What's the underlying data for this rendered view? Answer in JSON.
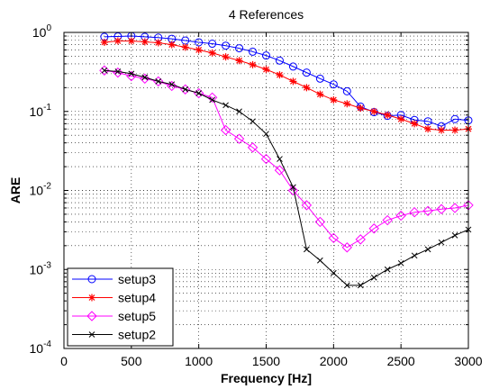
{
  "chart_data": {
    "type": "line",
    "title": "4 References",
    "xlabel": "Frequency [Hz]",
    "ylabel": "ARE",
    "xlim": [
      0,
      3000
    ],
    "ylim": [
      0.0001,
      1
    ],
    "yscale": "log",
    "grid": true,
    "legend_position": "bottom-left",
    "x_ticks": [
      "0",
      "500",
      "1000",
      "1500",
      "2000",
      "2500",
      "3000"
    ],
    "y_ticks": [
      {
        "base": "10",
        "exp": "0"
      },
      {
        "base": "10",
        "exp": "-1"
      },
      {
        "base": "10",
        "exp": "-2"
      },
      {
        "base": "10",
        "exp": "-3"
      },
      {
        "base": "10",
        "exp": "-4"
      }
    ],
    "x": [
      300,
      400,
      500,
      600,
      700,
      800,
      900,
      1000,
      1100,
      1200,
      1300,
      1400,
      1500,
      1600,
      1700,
      1800,
      1900,
      2000,
      2100,
      2200,
      2300,
      2400,
      2500,
      2600,
      2700,
      2800,
      2900,
      3000
    ],
    "series": [
      {
        "name": "setup3",
        "color": "#0000ff",
        "marker": "circle",
        "values": [
          0.88,
          0.89,
          0.9,
          0.88,
          0.86,
          0.83,
          0.79,
          0.75,
          0.72,
          0.68,
          0.63,
          0.57,
          0.51,
          0.44,
          0.37,
          0.31,
          0.26,
          0.22,
          0.18,
          0.115,
          0.098,
          0.088,
          0.09,
          0.078,
          0.075,
          0.065,
          0.08,
          0.077
        ]
      },
      {
        "name": "setup4",
        "color": "#ff0000",
        "marker": "star",
        "values": [
          0.75,
          0.78,
          0.78,
          0.76,
          0.74,
          0.7,
          0.65,
          0.6,
          0.55,
          0.49,
          0.44,
          0.39,
          0.34,
          0.29,
          0.24,
          0.2,
          0.165,
          0.14,
          0.125,
          0.11,
          0.1,
          0.09,
          0.08,
          0.07,
          0.06,
          0.058,
          0.058,
          0.06
        ]
      },
      {
        "name": "setup5",
        "color": "#ff00ff",
        "marker": "diamond",
        "values": [
          0.33,
          0.31,
          0.28,
          0.26,
          0.24,
          0.21,
          0.19,
          0.17,
          0.15,
          0.058,
          0.045,
          0.035,
          0.025,
          0.018,
          0.01,
          0.0065,
          0.004,
          0.0025,
          0.0019,
          0.0024,
          0.0033,
          0.0042,
          0.0048,
          0.0053,
          0.0055,
          0.0058,
          0.006,
          0.0065
        ]
      },
      {
        "name": "setup2",
        "color": "#000000",
        "marker": "x",
        "values": [
          0.33,
          0.32,
          0.3,
          0.27,
          0.24,
          0.22,
          0.19,
          0.17,
          0.14,
          0.12,
          0.1,
          0.075,
          0.052,
          0.025,
          0.011,
          0.0018,
          0.0013,
          0.0009,
          0.00063,
          0.00063,
          0.00079,
          0.001,
          0.0012,
          0.0015,
          0.0018,
          0.0022,
          0.0027,
          0.0032
        ]
      }
    ]
  }
}
